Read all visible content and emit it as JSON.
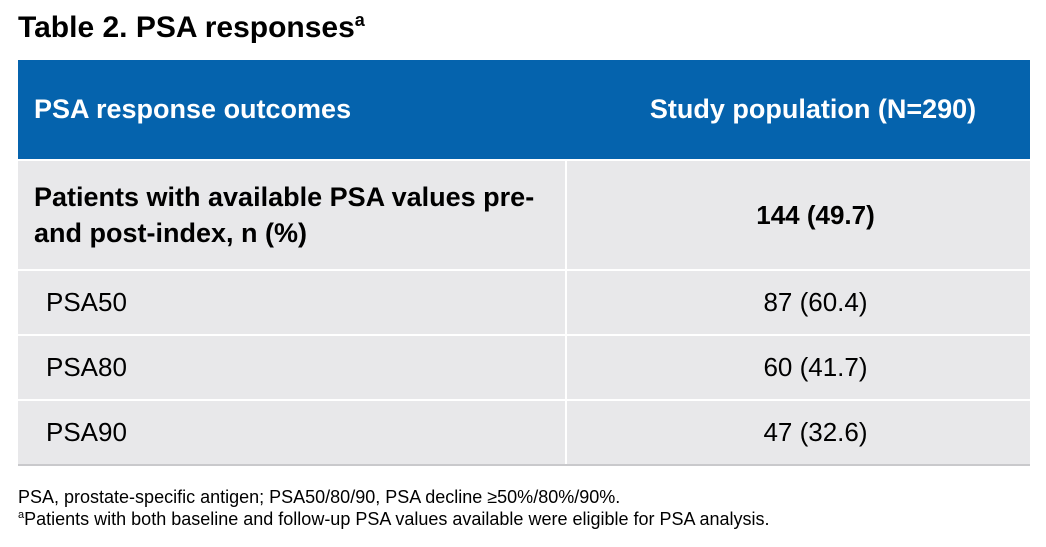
{
  "title": {
    "text": "Table 2. PSA responses",
    "superscript": "a"
  },
  "table": {
    "headers": [
      "PSA response outcomes",
      "Study population (N=290)"
    ],
    "main_row": {
      "label": "Patients with available PSA values pre- and post-index, n (%)",
      "value": "144 (49.7)"
    },
    "rows": [
      {
        "label": "PSA50",
        "value": "87 (60.4)"
      },
      {
        "label": "PSA80",
        "value": "60 (41.7)"
      },
      {
        "label": "PSA90",
        "value": "47 (32.6)"
      }
    ]
  },
  "footnotes": {
    "abbreviations": "PSA, prostate-specific antigen; PSA50/80/90, PSA decline ≥50%/80%/90%.",
    "note_marker": "a",
    "note_text": "Patients with both baseline and follow-up PSA values available were eligible for PSA analysis."
  },
  "colors": {
    "header_background": "#0563ad",
    "header_text": "#ffffff",
    "row_background": "#e8e8ea"
  }
}
